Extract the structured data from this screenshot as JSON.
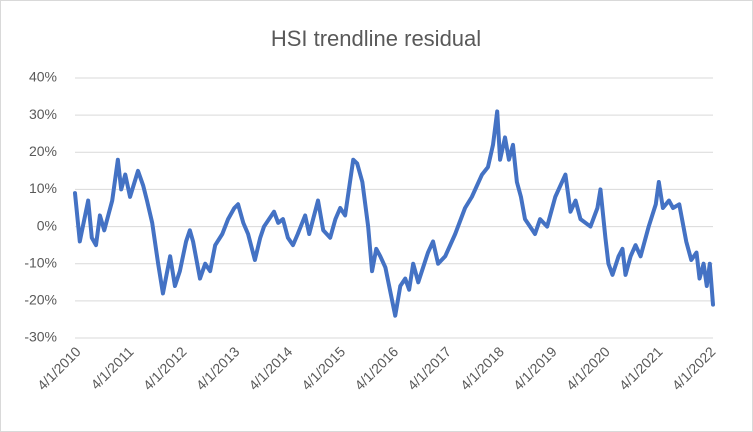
{
  "chart_data": {
    "type": "line",
    "title": "HSI trendline residual",
    "color": "#4472c4",
    "grid": true,
    "x": [
      "2010-04-01",
      "2010-05-04",
      "2010-07-01",
      "2010-07-26",
      "2010-08-24",
      "2010-09-20",
      "2010-10-20",
      "2010-12-14",
      "2011-01-22",
      "2011-02-14",
      "2011-03-14",
      "2011-04-16",
      "2011-06-10",
      "2011-07-16",
      "2011-08-11",
      "2011-09-16",
      "2011-10-27",
      "2011-11-29",
      "2012-01-18",
      "2012-02-20",
      "2012-03-25",
      "2012-05-07",
      "2012-06-02",
      "2012-06-24",
      "2012-08-11",
      "2012-09-16",
      "2012-10-20",
      "2012-11-24",
      "2013-01-12",
      "2013-02-21",
      "2013-04-05",
      "2013-05-01",
      "2013-06-06",
      "2013-07-09",
      "2013-08-25",
      "2013-10-01",
      "2013-10-27",
      "2014-01-04",
      "2014-02-02",
      "2014-03-07",
      "2014-04-10",
      "2014-05-15",
      "2014-06-17",
      "2014-08-07",
      "2014-09-04",
      "2014-10-01",
      "2014-11-04",
      "2014-12-10",
      "2015-01-27",
      "2015-03-04",
      "2015-04-06",
      "2015-05-10",
      "2015-07-05",
      "2015-08-01",
      "2015-09-06",
      "2015-10-16",
      "2015-11-12",
      "2015-12-11",
      "2016-01-08",
      "2016-02-12",
      "2016-03-30",
      "2016-04-20",
      "2016-05-25",
      "2016-06-28",
      "2016-07-25",
      "2016-08-22",
      "2016-09-26",
      "2016-12-02",
      "2017-01-06",
      "2017-02-10",
      "2017-03-31",
      "2017-06-08",
      "2017-08-15",
      "2017-10-01",
      "2017-12-10",
      "2018-01-20",
      "2018-02-24",
      "2018-03-25",
      "2018-04-14",
      "2018-05-18",
      "2018-06-14",
      "2018-07-12",
      "2018-08-08",
      "2018-09-05",
      "2018-10-03",
      "2018-11-07",
      "2018-12-11",
      "2019-01-15",
      "2019-03-05",
      "2019-04-30",
      "2019-07-09",
      "2019-08-13",
      "2019-09-17",
      "2019-10-21",
      "2019-12-29",
      "2020-02-15",
      "2020-03-07",
      "2020-04-10",
      "2020-05-01",
      "2020-05-29",
      "2020-07-10",
      "2020-08-06",
      "2020-08-27",
      "2020-10-01",
      "2020-11-04",
      "2020-12-09",
      "2021-02-03",
      "2021-03-24",
      "2021-04-14",
      "2021-05-12",
      "2021-06-23",
      "2021-07-21",
      "2021-09-02",
      "2021-10-20",
      "2021-11-24",
      "2021-12-30",
      "2022-01-20",
      "2022-02-17",
      "2022-03-11",
      "2022-04-01",
      "2022-04-23"
    ],
    "values": [
      9,
      -4,
      7,
      -3,
      -5,
      3,
      -1,
      7,
      18,
      10,
      14,
      8,
      15,
      11,
      7,
      1,
      -10,
      -18,
      -8,
      -16,
      -12,
      -4,
      -1,
      -4,
      -14,
      -10,
      -12,
      -5,
      -2,
      2,
      5,
      6,
      1,
      -2,
      -9,
      -3,
      0,
      4,
      1,
      2,
      -3,
      -5,
      -2,
      3,
      -2,
      2,
      7,
      -1,
      -3,
      2,
      5,
      3,
      18,
      17,
      12,
      0,
      -12,
      -6,
      -8,
      -11,
      -20,
      -24,
      -16,
      -14,
      -17,
      -10,
      -15,
      -7,
      -4,
      -10,
      -8,
      -2,
      5,
      8,
      14,
      16,
      22,
      31,
      18,
      24,
      18,
      22,
      12,
      8,
      2,
      0,
      -2,
      2,
      0,
      8,
      14,
      4,
      7,
      2,
      0,
      5,
      10,
      -3,
      -10,
      -13,
      -8,
      -6,
      -13,
      -8,
      -5,
      -8,
      0,
      6,
      12,
      5,
      7,
      5,
      6,
      -4,
      -9,
      -7,
      -14,
      -10,
      -16,
      -10,
      -21
    ],
    "xlim": [
      "2010-04-01",
      "2022-04-23"
    ],
    "xticks": [
      {
        "value": "2010-04-01",
        "label": "4/1/2010"
      },
      {
        "value": "2011-04-01",
        "label": "4/1/2011"
      },
      {
        "value": "2012-04-01",
        "label": "4/1/2012"
      },
      {
        "value": "2013-04-01",
        "label": "4/1/2013"
      },
      {
        "value": "2014-04-01",
        "label": "4/1/2014"
      },
      {
        "value": "2015-04-01",
        "label": "4/1/2015"
      },
      {
        "value": "2016-04-01",
        "label": "4/1/2016"
      },
      {
        "value": "2017-04-01",
        "label": "4/1/2017"
      },
      {
        "value": "2018-04-01",
        "label": "4/1/2018"
      },
      {
        "value": "2019-04-01",
        "label": "4/1/2019"
      },
      {
        "value": "2020-04-01",
        "label": "4/1/2020"
      },
      {
        "value": "2021-04-01",
        "label": "4/1/2021"
      },
      {
        "value": "2022-04-01",
        "label": "4/1/2022"
      }
    ],
    "ylim": [
      -30,
      40
    ],
    "yticks": [
      {
        "value": -30,
        "label": "-30%"
      },
      {
        "value": -20,
        "label": "-20%"
      },
      {
        "value": -10,
        "label": "-10%"
      },
      {
        "value": 0,
        "label": "0%"
      },
      {
        "value": 10,
        "label": "10%"
      },
      {
        "value": 20,
        "label": "20%"
      },
      {
        "value": 30,
        "label": "30%"
      },
      {
        "value": 40,
        "label": "40%"
      }
    ]
  }
}
